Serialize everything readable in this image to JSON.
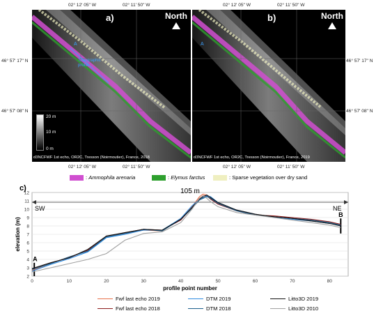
{
  "coords": {
    "top_left_lon": "02° 12' 05\" W",
    "top_right_lon": "02° 11' 50\" W",
    "bottom_left_lon": "02° 12' 05\" W",
    "bottom_right_lon": "02° 11' 50\" W",
    "lat_upper": "46° 57' 17\" N",
    "lat_lower": "46° 57' 08\" N"
  },
  "panel_a": {
    "label": "a)",
    "north": "North",
    "point_a": "A",
    "point_b": "B",
    "profile_label": "Topographic\nprofile",
    "scale": {
      "top": "20 m",
      "mid": "10 m",
      "bottom": "0 m"
    },
    "credit": "d3NCFWF 1st echo, OR2C, Tresson (Noirmoutier), France, 2018"
  },
  "panel_b": {
    "label": "b)",
    "north": "North",
    "point_a": "A",
    "credit": "d3NCFWF 1st echo, OR2C, Tresson (Noirmoutier), France, 2019"
  },
  "veg_legend": [
    {
      "name": "Ammophila arenaria",
      "prefix": ":",
      "color": "#d04fd0",
      "italic": true
    },
    {
      "name": "Elymus farctus",
      "prefix": ":",
      "color": "#2ea02e",
      "italic": true
    },
    {
      "name": "Sparse vegetation over dry sand",
      "prefix": ":",
      "color": "#efefc0",
      "italic": false
    }
  ],
  "chart_data": {
    "type": "line",
    "panel_label": "c)",
    "xlabel": "profile point number",
    "ylabel": "elevation (m)",
    "xlim": [
      0,
      85
    ],
    "ylim": [
      2,
      12
    ],
    "xticks": [
      0,
      10,
      20,
      30,
      40,
      50,
      60,
      70,
      80
    ],
    "yticks": [
      2,
      3,
      4,
      5,
      6,
      7,
      8,
      9,
      10,
      11,
      12
    ],
    "annotations": {
      "distance": "105 m",
      "left_dir": "SW",
      "right_dir": "NE",
      "start": "A",
      "end": "B"
    },
    "x": [
      0,
      5,
      10,
      15,
      20,
      25,
      30,
      35,
      40,
      43,
      45,
      46,
      47,
      48,
      50,
      55,
      60,
      65,
      70,
      75,
      80,
      83
    ],
    "series": [
      {
        "name": "Fwf last echo 2019",
        "color": "#e8704a",
        "values": [
          2.7,
          3.5,
          4.3,
          5.0,
          6.8,
          7.1,
          7.5,
          7.4,
          8.8,
          10.3,
          11.5,
          11.8,
          11.7,
          11.4,
          10.7,
          9.9,
          9.4,
          9.1,
          8.9,
          8.7,
          8.5,
          8.1
        ]
      },
      {
        "name": "Fwf last echo 2018",
        "color": "#8b1a1a",
        "values": [
          2.9,
          3.6,
          4.2,
          5.1,
          6.7,
          7.2,
          7.6,
          7.5,
          8.7,
          10.2,
          11.3,
          11.6,
          11.6,
          11.2,
          10.6,
          9.8,
          9.3,
          9.2,
          9.0,
          8.8,
          8.5,
          8.2
        ]
      },
      {
        "name": "DTM 2019",
        "color": "#2e8be0",
        "values": [
          2.6,
          3.4,
          4.1,
          4.9,
          6.6,
          7.0,
          7.5,
          7.5,
          8.9,
          10.4,
          11.2,
          11.4,
          11.6,
          11.5,
          10.8,
          9.9,
          9.4,
          9.0,
          8.8,
          8.6,
          8.3,
          8.0
        ]
      },
      {
        "name": "DTM 2018",
        "color": "#1a5e8a",
        "values": [
          2.8,
          3.5,
          4.3,
          5.0,
          6.7,
          7.1,
          7.6,
          7.4,
          8.8,
          10.1,
          11.1,
          11.3,
          11.5,
          11.3,
          10.7,
          9.8,
          9.3,
          9.1,
          8.9,
          8.7,
          8.4,
          8.1
        ]
      },
      {
        "name": "Litto3D 2019",
        "color": "#111111",
        "values": [
          2.9,
          3.6,
          4.2,
          5.2,
          6.8,
          7.2,
          7.6,
          7.5,
          8.8,
          10.2,
          11.2,
          11.5,
          11.7,
          11.4,
          10.8,
          9.9,
          9.4,
          9.1,
          8.9,
          8.6,
          8.3,
          8.0
        ]
      },
      {
        "name": "Litto3D 2010",
        "color": "#a0a0a0",
        "values": [
          2.5,
          3.0,
          3.5,
          4.0,
          4.7,
          6.3,
          7.1,
          7.3,
          8.4,
          10.0,
          11.3,
          11.6,
          11.3,
          10.9,
          10.3,
          9.6,
          9.3,
          9.0,
          8.7,
          8.4,
          8.1,
          7.8
        ]
      }
    ]
  }
}
